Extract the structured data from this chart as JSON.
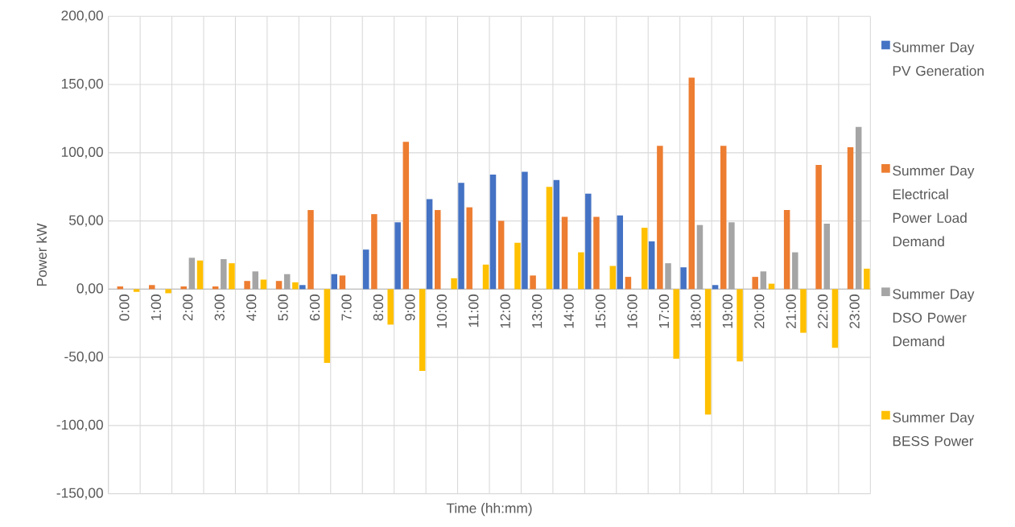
{
  "chart_data": {
    "type": "bar",
    "xlabel": "Time (hh:mm)",
    "ylabel": "Power kW",
    "categories": [
      "0:00",
      "1:00",
      "2:00",
      "3:00",
      "4:00",
      "5:00",
      "6:00",
      "7:00",
      "8:00",
      "9:00",
      "10:00",
      "11:00",
      "12:00",
      "13:00",
      "14:00",
      "15:00",
      "16:00",
      "17:00",
      "18:00",
      "19:00",
      "20:00",
      "21:00",
      "22:00",
      "23:00"
    ],
    "series": [
      {
        "name": "Summer Day PV Generation",
        "color": "#4472c4",
        "values": [
          0,
          0,
          0,
          0,
          0,
          0,
          3,
          11,
          29,
          49,
          66,
          78,
          84,
          86,
          80,
          70,
          54,
          35,
          16,
          3,
          0,
          0,
          0,
          0
        ]
      },
      {
        "name": "Summer Day Electrical Power Load Demand",
        "color": "#ed7d31",
        "values": [
          2,
          3,
          2,
          2,
          6,
          6,
          58,
          10,
          55,
          108,
          58,
          60,
          50,
          10,
          53,
          53,
          9,
          105,
          155,
          105,
          9,
          58,
          91,
          104
        ]
      },
      {
        "name": "Summer Day DSO Power Demand",
        "color": "#a5a5a5",
        "values": [
          0,
          null,
          23,
          22,
          13,
          11,
          0,
          0,
          0,
          0,
          0,
          0,
          0,
          0,
          0,
          0,
          0,
          19,
          47,
          49,
          13,
          27,
          48,
          119
        ]
      },
      {
        "name": "Summer Day BESS Power",
        "color": "#ffc000",
        "values": [
          -2,
          -3,
          21,
          19,
          7,
          5,
          -54,
          0,
          -26,
          -60,
          8,
          18,
          34,
          75,
          27,
          17,
          45,
          -51,
          -92,
          -53,
          4,
          -32,
          -43,
          15
        ]
      }
    ],
    "ylim": [
      -150,
      200
    ],
    "yticks": [
      {
        "value": -150,
        "label": "-150,00"
      },
      {
        "value": -100,
        "label": "-100,00"
      },
      {
        "value": -50,
        "label": "-50,00"
      },
      {
        "value": 0,
        "label": "0,00"
      },
      {
        "value": 50,
        "label": "50,00"
      },
      {
        "value": 100,
        "label": "100,00"
      },
      {
        "value": 150,
        "label": "150,00"
      },
      {
        "value": 200,
        "label": "200,00"
      }
    ],
    "grid": true,
    "legend": "right"
  }
}
